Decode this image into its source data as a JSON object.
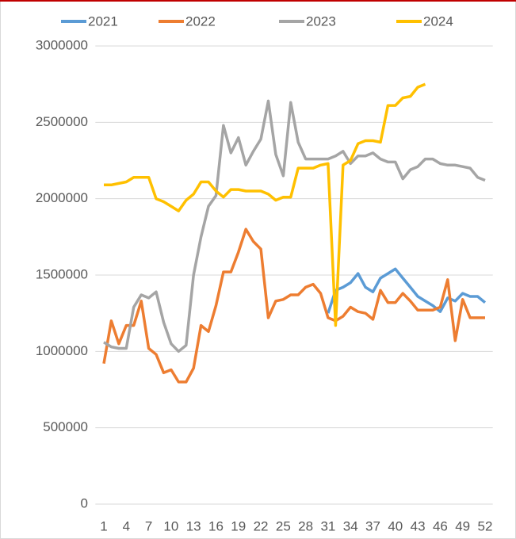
{
  "chart_data": {
    "type": "line",
    "categories": [
      1,
      null,
      null,
      4,
      null,
      null,
      7,
      null,
      null,
      10,
      null,
      null,
      13,
      null,
      null,
      16,
      null,
      null,
      19,
      null,
      null,
      22,
      null,
      null,
      25,
      null,
      null,
      28,
      null,
      null,
      31,
      null,
      null,
      34,
      null,
      null,
      37,
      null,
      null,
      40,
      null,
      null,
      43,
      null,
      null,
      46,
      null,
      null,
      49,
      null,
      null,
      52
    ],
    "ylim": [
      0,
      3000000
    ],
    "yticks": [
      0,
      500000,
      1000000,
      1500000,
      2000000,
      2500000,
      3000000
    ],
    "grid": true,
    "legend": "top",
    "series": [
      {
        "name": "2021",
        "color": "#5b9bd5",
        "values": [
          null,
          null,
          null,
          null,
          null,
          null,
          null,
          null,
          null,
          null,
          null,
          null,
          null,
          null,
          null,
          null,
          null,
          null,
          null,
          null,
          null,
          null,
          null,
          null,
          null,
          null,
          null,
          null,
          null,
          null,
          1250000,
          1400000,
          1420000,
          1450000,
          1510000,
          1420000,
          1390000,
          1480000,
          1510000,
          1540000,
          1480000,
          1420000,
          1360000,
          1330000,
          1300000,
          1260000,
          1350000,
          1330000,
          1380000,
          1360000,
          1360000,
          1320000
        ]
      },
      {
        "name": "2022",
        "color": "#ed7d31",
        "values": [
          920000,
          1200000,
          1050000,
          1170000,
          1170000,
          1330000,
          1020000,
          980000,
          860000,
          880000,
          800000,
          800000,
          890000,
          1170000,
          1130000,
          1300000,
          1520000,
          1520000,
          1650000,
          1800000,
          1720000,
          1670000,
          1220000,
          1330000,
          1340000,
          1370000,
          1370000,
          1420000,
          1440000,
          1380000,
          1220000,
          1200000,
          1230000,
          1290000,
          1260000,
          1250000,
          1210000,
          1400000,
          1320000,
          1320000,
          1380000,
          1330000,
          1270000,
          1270000,
          1270000,
          1290000,
          1470000,
          1070000,
          1340000,
          1220000,
          1220000,
          1220000
        ]
      },
      {
        "name": "2023",
        "color": "#a5a5a5",
        "values": [
          1060000,
          1030000,
          1020000,
          1020000,
          1290000,
          1370000,
          1350000,
          1390000,
          1190000,
          1050000,
          1000000,
          1040000,
          1500000,
          1750000,
          1950000,
          2020000,
          2480000,
          2300000,
          2400000,
          2220000,
          2310000,
          2390000,
          2640000,
          2290000,
          2150000,
          2630000,
          2370000,
          2260000,
          2260000,
          2260000,
          2260000,
          2280000,
          2310000,
          2230000,
          2280000,
          2280000,
          2300000,
          2260000,
          2240000,
          2240000,
          2130000,
          2190000,
          2210000,
          2260000,
          2260000,
          2230000,
          2220000,
          2220000,
          2210000,
          2200000,
          2140000,
          2120000
        ]
      },
      {
        "name": "2024",
        "color": "#ffc000",
        "values": [
          2090000,
          2090000,
          2100000,
          2110000,
          2140000,
          2140000,
          2140000,
          2000000,
          1980000,
          1950000,
          1920000,
          1990000,
          2030000,
          2110000,
          2110000,
          2050000,
          2010000,
          2060000,
          2060000,
          2050000,
          2050000,
          2050000,
          2030000,
          1990000,
          2010000,
          2010000,
          2200000,
          2200000,
          2200000,
          2220000,
          2230000,
          1170000,
          2220000,
          2250000,
          2360000,
          2380000,
          2380000,
          2370000,
          2610000,
          2610000,
          2660000,
          2670000,
          2730000,
          2750000,
          null,
          null,
          null,
          null,
          null,
          null,
          null,
          null
        ]
      }
    ]
  }
}
